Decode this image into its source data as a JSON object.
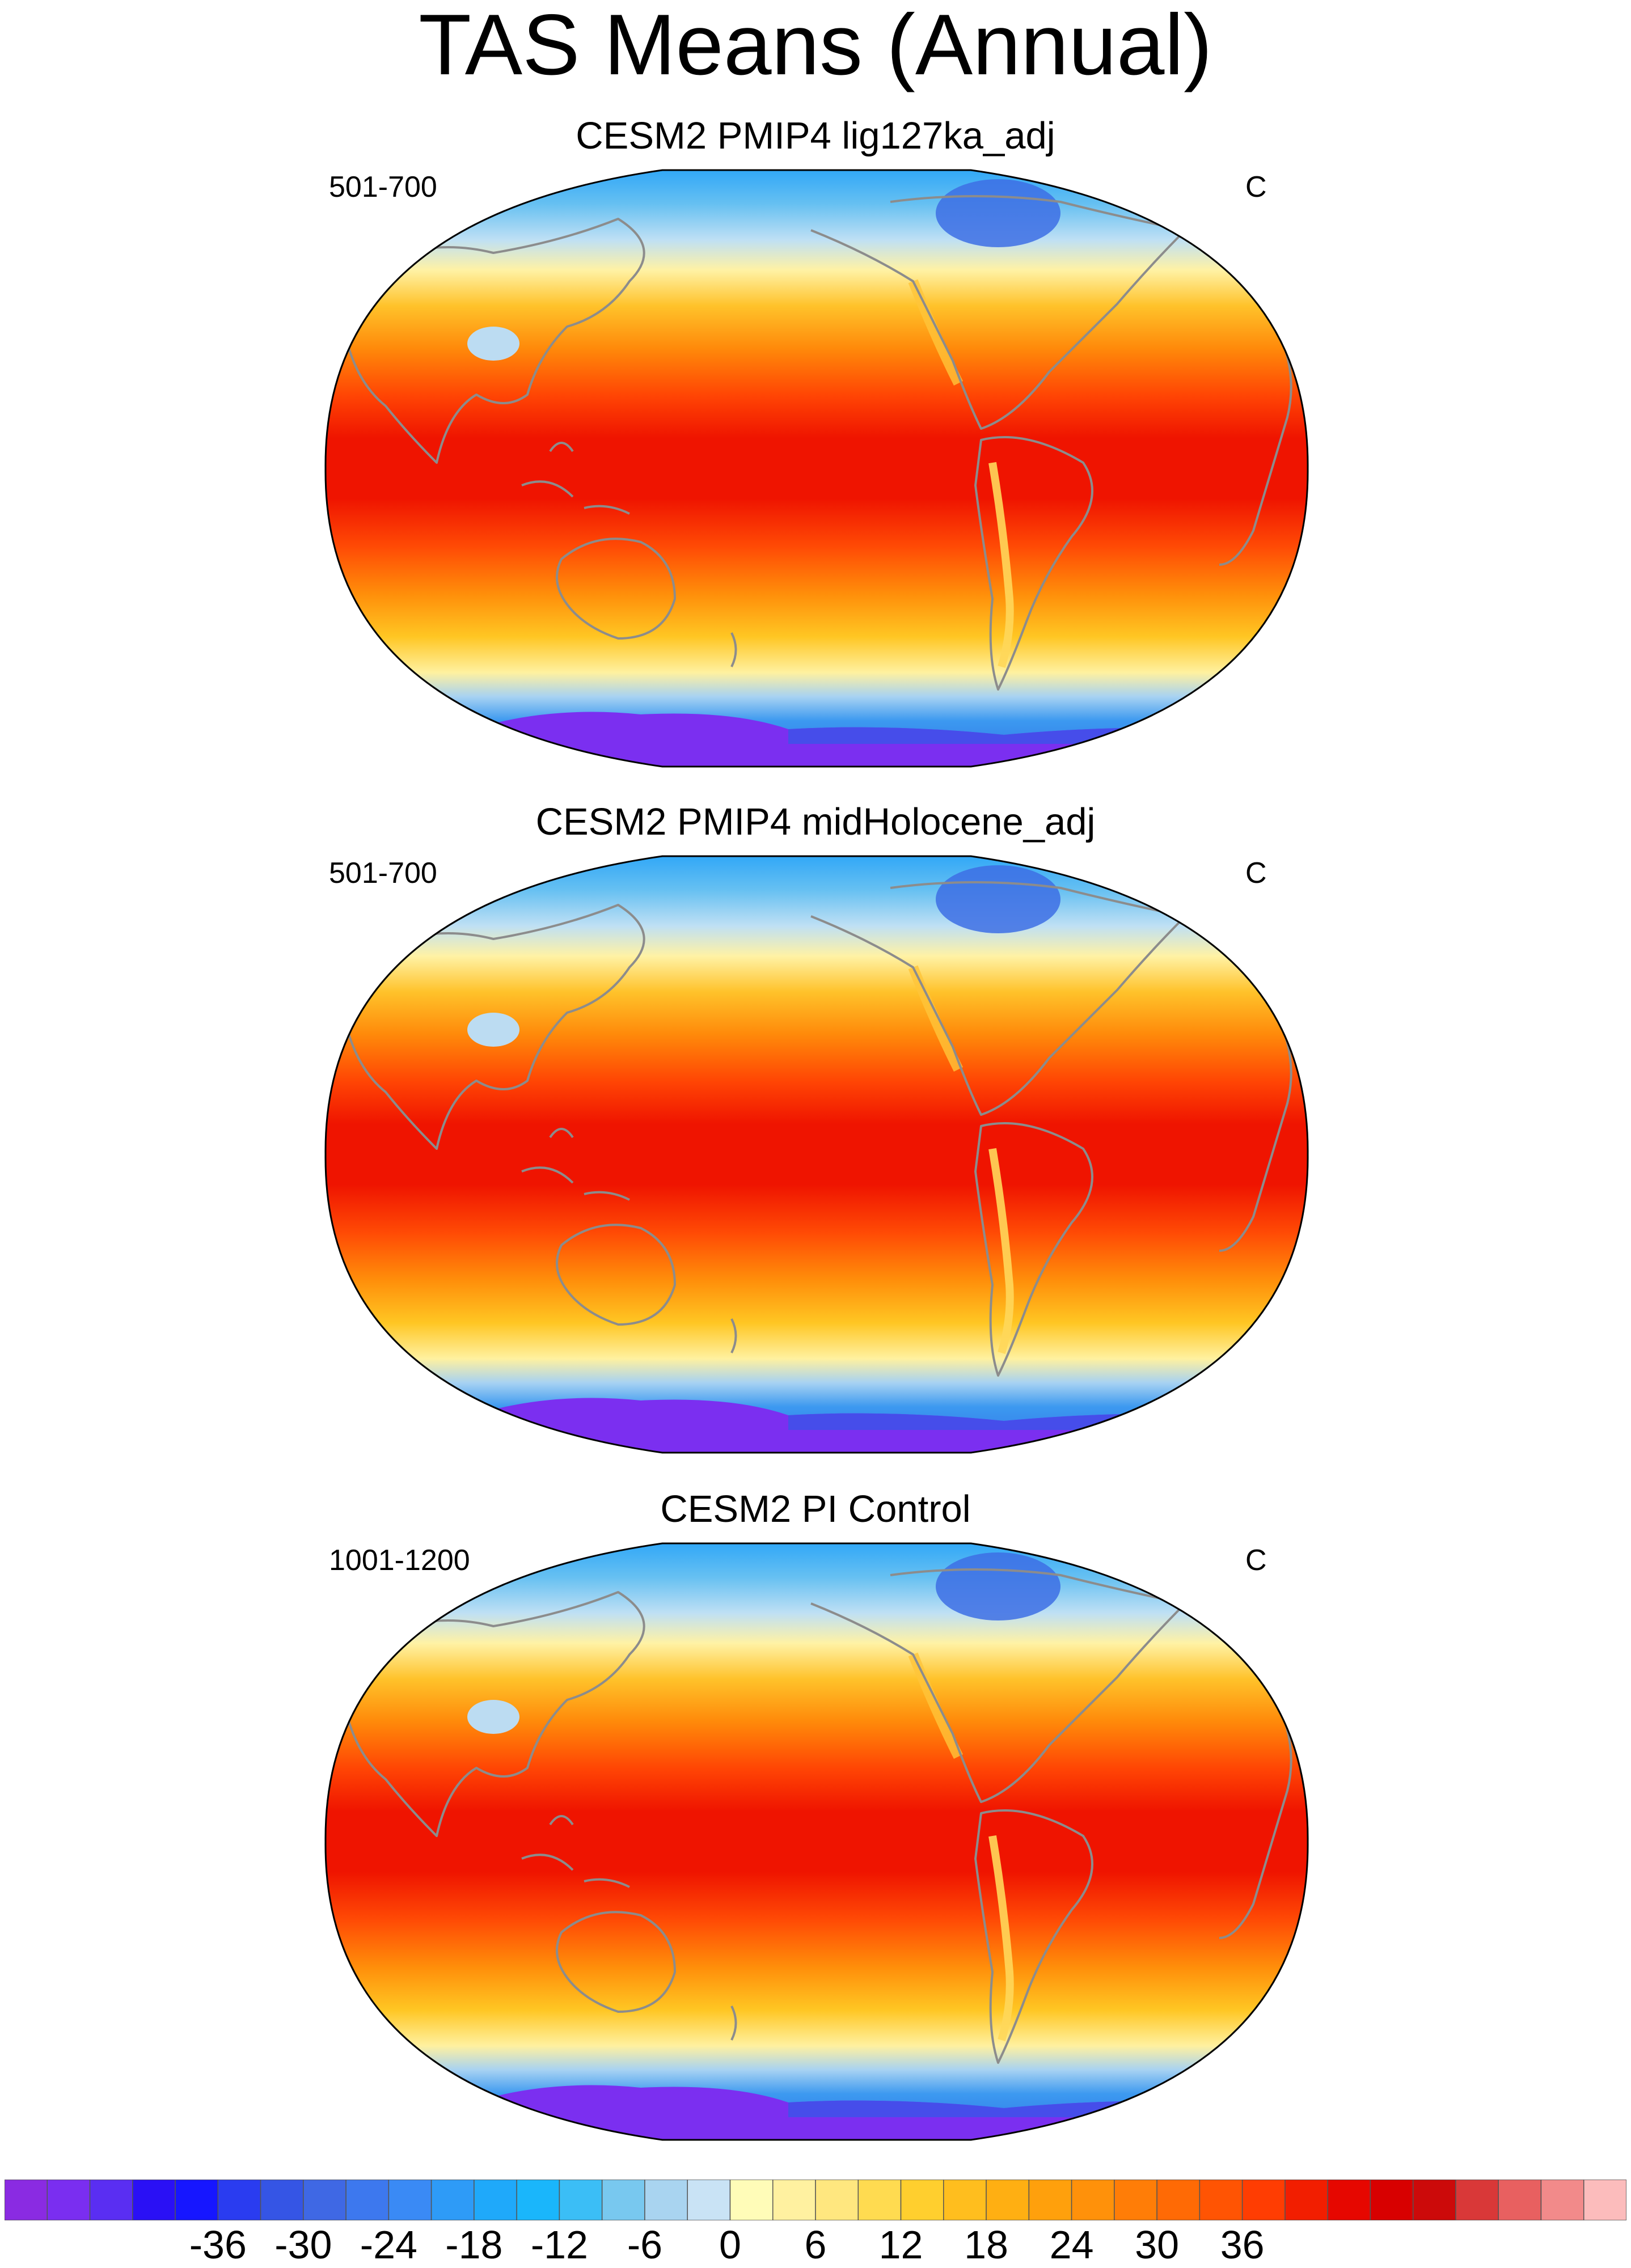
{
  "title": "TAS Means (Annual)",
  "panels": [
    {
      "title": "CESM2 PMIP4 lig127ka_adj",
      "left_label": "501-700",
      "right_label": "C"
    },
    {
      "title": "CESM2 PMIP4 midHolocene_adj",
      "left_label": "501-700",
      "right_label": "C"
    },
    {
      "title": "CESM2 PI Control",
      "left_label": "1001-1200",
      "right_label": "C"
    }
  ],
  "colorbar": {
    "colors": [
      "#8a2be2",
      "#7a2ef0",
      "#5a2ef2",
      "#2a10f5",
      "#1616ff",
      "#2a3cf0",
      "#3555e5",
      "#3f68e4",
      "#3d78ee",
      "#3a8af5",
      "#2e9bf7",
      "#1fa9fa",
      "#1ab6fb",
      "#3bbef6",
      "#78c8ef",
      "#a9d4f0",
      "#c9e3f5",
      "#fffcb8",
      "#fff1a0",
      "#ffe77f",
      "#ffdb50",
      "#ffcf2e",
      "#ffbe1e",
      "#ffaf12",
      "#ffa00c",
      "#ff910a",
      "#ff7d07",
      "#ff6a05",
      "#ff5403",
      "#ff3d02",
      "#f21e00",
      "#e60700",
      "#d80000",
      "#cc0a0a",
      "#d93838",
      "#e86060",
      "#f28a8a",
      "#fcbcbc"
    ],
    "tick_labels": [
      "-36",
      "-30",
      "-24",
      "-18",
      "-12",
      "-6",
      "0",
      "6",
      "12",
      "18",
      "24",
      "30",
      "36"
    ]
  }
}
